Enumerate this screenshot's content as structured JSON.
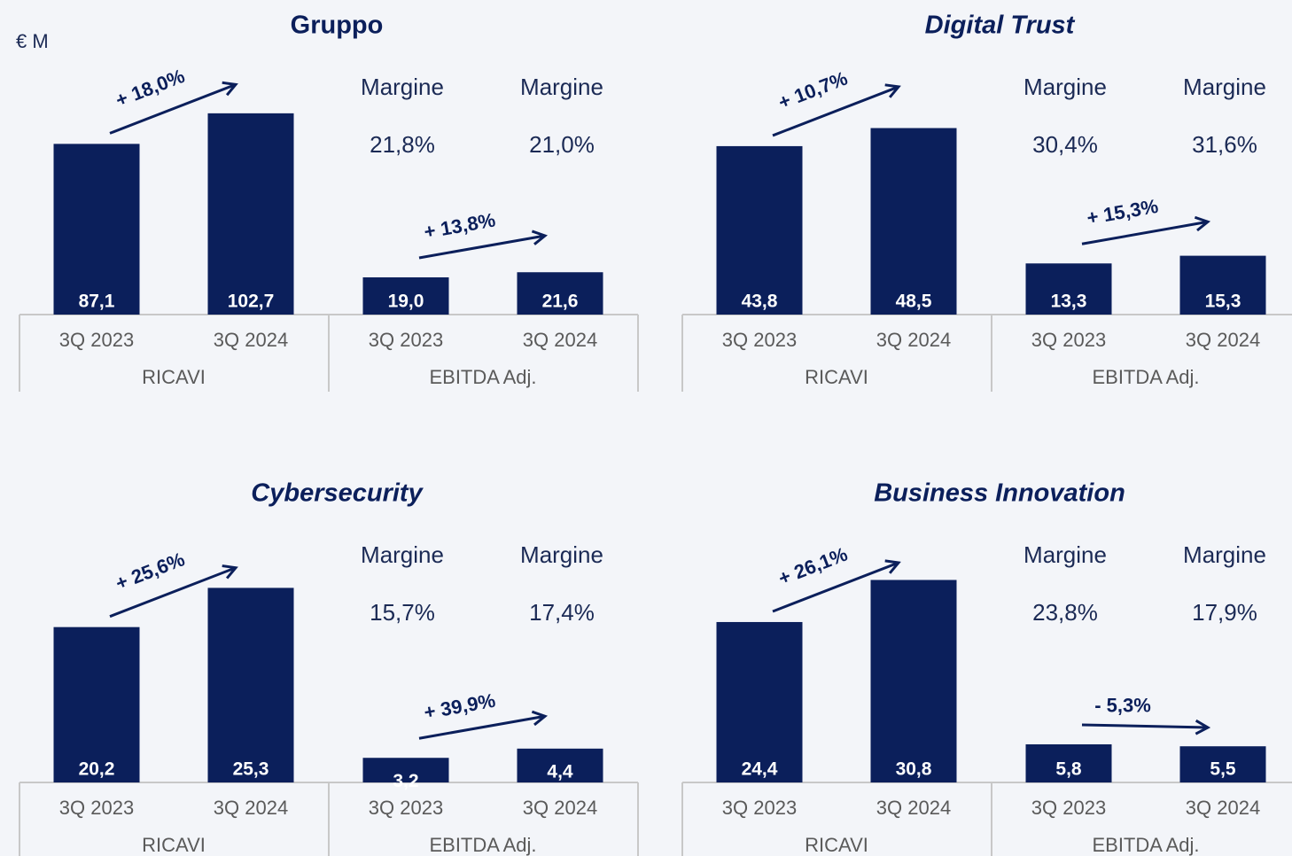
{
  "chart_data": [
    {
      "type": "bar",
      "title": "Gruppo",
      "unit": "€ M",
      "categories": [
        "3Q 2023",
        "3Q 2024",
        "3Q 2023",
        "3Q 2024"
      ],
      "groups": [
        "RICAVI",
        "EBITDA Adj."
      ],
      "values": [
        87.1,
        102.7,
        19.0,
        21.6
      ],
      "value_labels": [
        "87,1",
        "102,7",
        "19,0",
        "21,6"
      ],
      "ylim": [
        0,
        104
      ],
      "color": "#0b1f5b",
      "margin_label": "Margine",
      "margins": [
        "21,8%",
        "21,0%"
      ],
      "growth": [
        "+ 18,0%",
        "+ 13,8%"
      ]
    },
    {
      "type": "bar",
      "title": "Digital Trust",
      "categories": [
        "3Q 2023",
        "3Q 2024",
        "3Q 2023",
        "3Q 2024"
      ],
      "groups": [
        "RICAVI",
        "EBITDA Adj."
      ],
      "values": [
        43.8,
        48.5,
        13.3,
        15.3
      ],
      "value_labels": [
        "43,8",
        "48,5",
        "13,3",
        "15,3"
      ],
      "ylim": [
        0,
        53
      ],
      "color": "#0b1f5b",
      "margin_label": "Margine",
      "margins": [
        "30,4%",
        "31,6%"
      ],
      "growth": [
        "+ 10,7%",
        "+ 15,3%"
      ]
    },
    {
      "type": "bar",
      "title": "Cybersecurity",
      "categories": [
        "3Q 2023",
        "3Q 2024",
        "3Q 2023",
        "3Q 2024"
      ],
      "groups": [
        "RICAVI",
        "EBITDA Adj."
      ],
      "values": [
        20.2,
        25.3,
        3.2,
        4.4
      ],
      "value_labels": [
        "20,2",
        "25,3",
        "3,2",
        "4,4"
      ],
      "ylim": [
        0,
        26.5
      ],
      "color": "#0b1f5b",
      "margin_label": "Margine",
      "margins": [
        "15,7%",
        "17,4%"
      ],
      "growth": [
        "+ 25,6%",
        "+ 39,9%"
      ]
    },
    {
      "type": "bar",
      "title": "Business Innovation",
      "categories": [
        "3Q 2023",
        "3Q 2024",
        "3Q 2023",
        "3Q 2024"
      ],
      "groups": [
        "RICAVI",
        "EBITDA Adj."
      ],
      "values": [
        24.4,
        30.8,
        5.8,
        5.5
      ],
      "value_labels": [
        "24,4",
        "30,8",
        "5,8",
        "5,5"
      ],
      "ylim": [
        0,
        31
      ],
      "color": "#0b1f5b",
      "margin_label": "Margine",
      "margins": [
        "23,8%",
        "17,9%"
      ],
      "growth": [
        "+ 26,1%",
        "- 5,3%"
      ]
    }
  ]
}
